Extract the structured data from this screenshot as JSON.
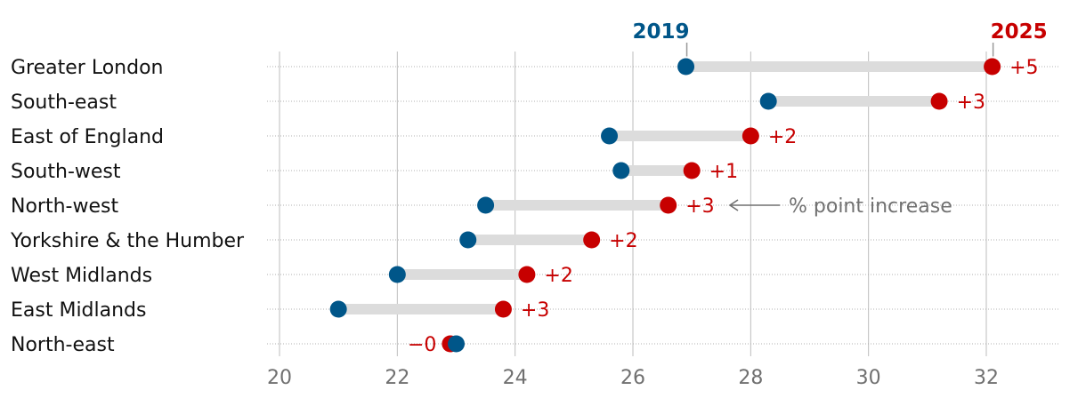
{
  "chart_data": {
    "type": "dumbbell",
    "series": [
      {
        "name": "2019",
        "color": "#005689"
      },
      {
        "name": "2025",
        "color": "#c70000"
      }
    ],
    "categories": [
      "Greater London",
      "South-east",
      "East of England",
      "South-west",
      "North-west",
      "Yorkshire & the Humber",
      "West Midlands",
      "East Midlands",
      "North-east"
    ],
    "values_2019": [
      26.9,
      28.3,
      25.6,
      25.8,
      23.5,
      23.2,
      22.0,
      21.0,
      23.0
    ],
    "values_2025": [
      32.1,
      31.2,
      28.0,
      27.0,
      26.6,
      25.3,
      24.2,
      23.8,
      22.9
    ],
    "change_labels": [
      "+5",
      "+3",
      "+2",
      "+1",
      "+3",
      "+2",
      "+2",
      "+3",
      "−0"
    ],
    "x_ticks": [
      20,
      22,
      24,
      26,
      28,
      30,
      32
    ],
    "xlim": [
      19.8,
      33.2
    ],
    "annotation": "% point increase",
    "grid": true
  },
  "colors": {
    "blue_2019": "#005689",
    "red_2025": "#c70000",
    "bar": "#dcdcdc",
    "grid": "#bdbdbd",
    "annotation": "#707070"
  }
}
